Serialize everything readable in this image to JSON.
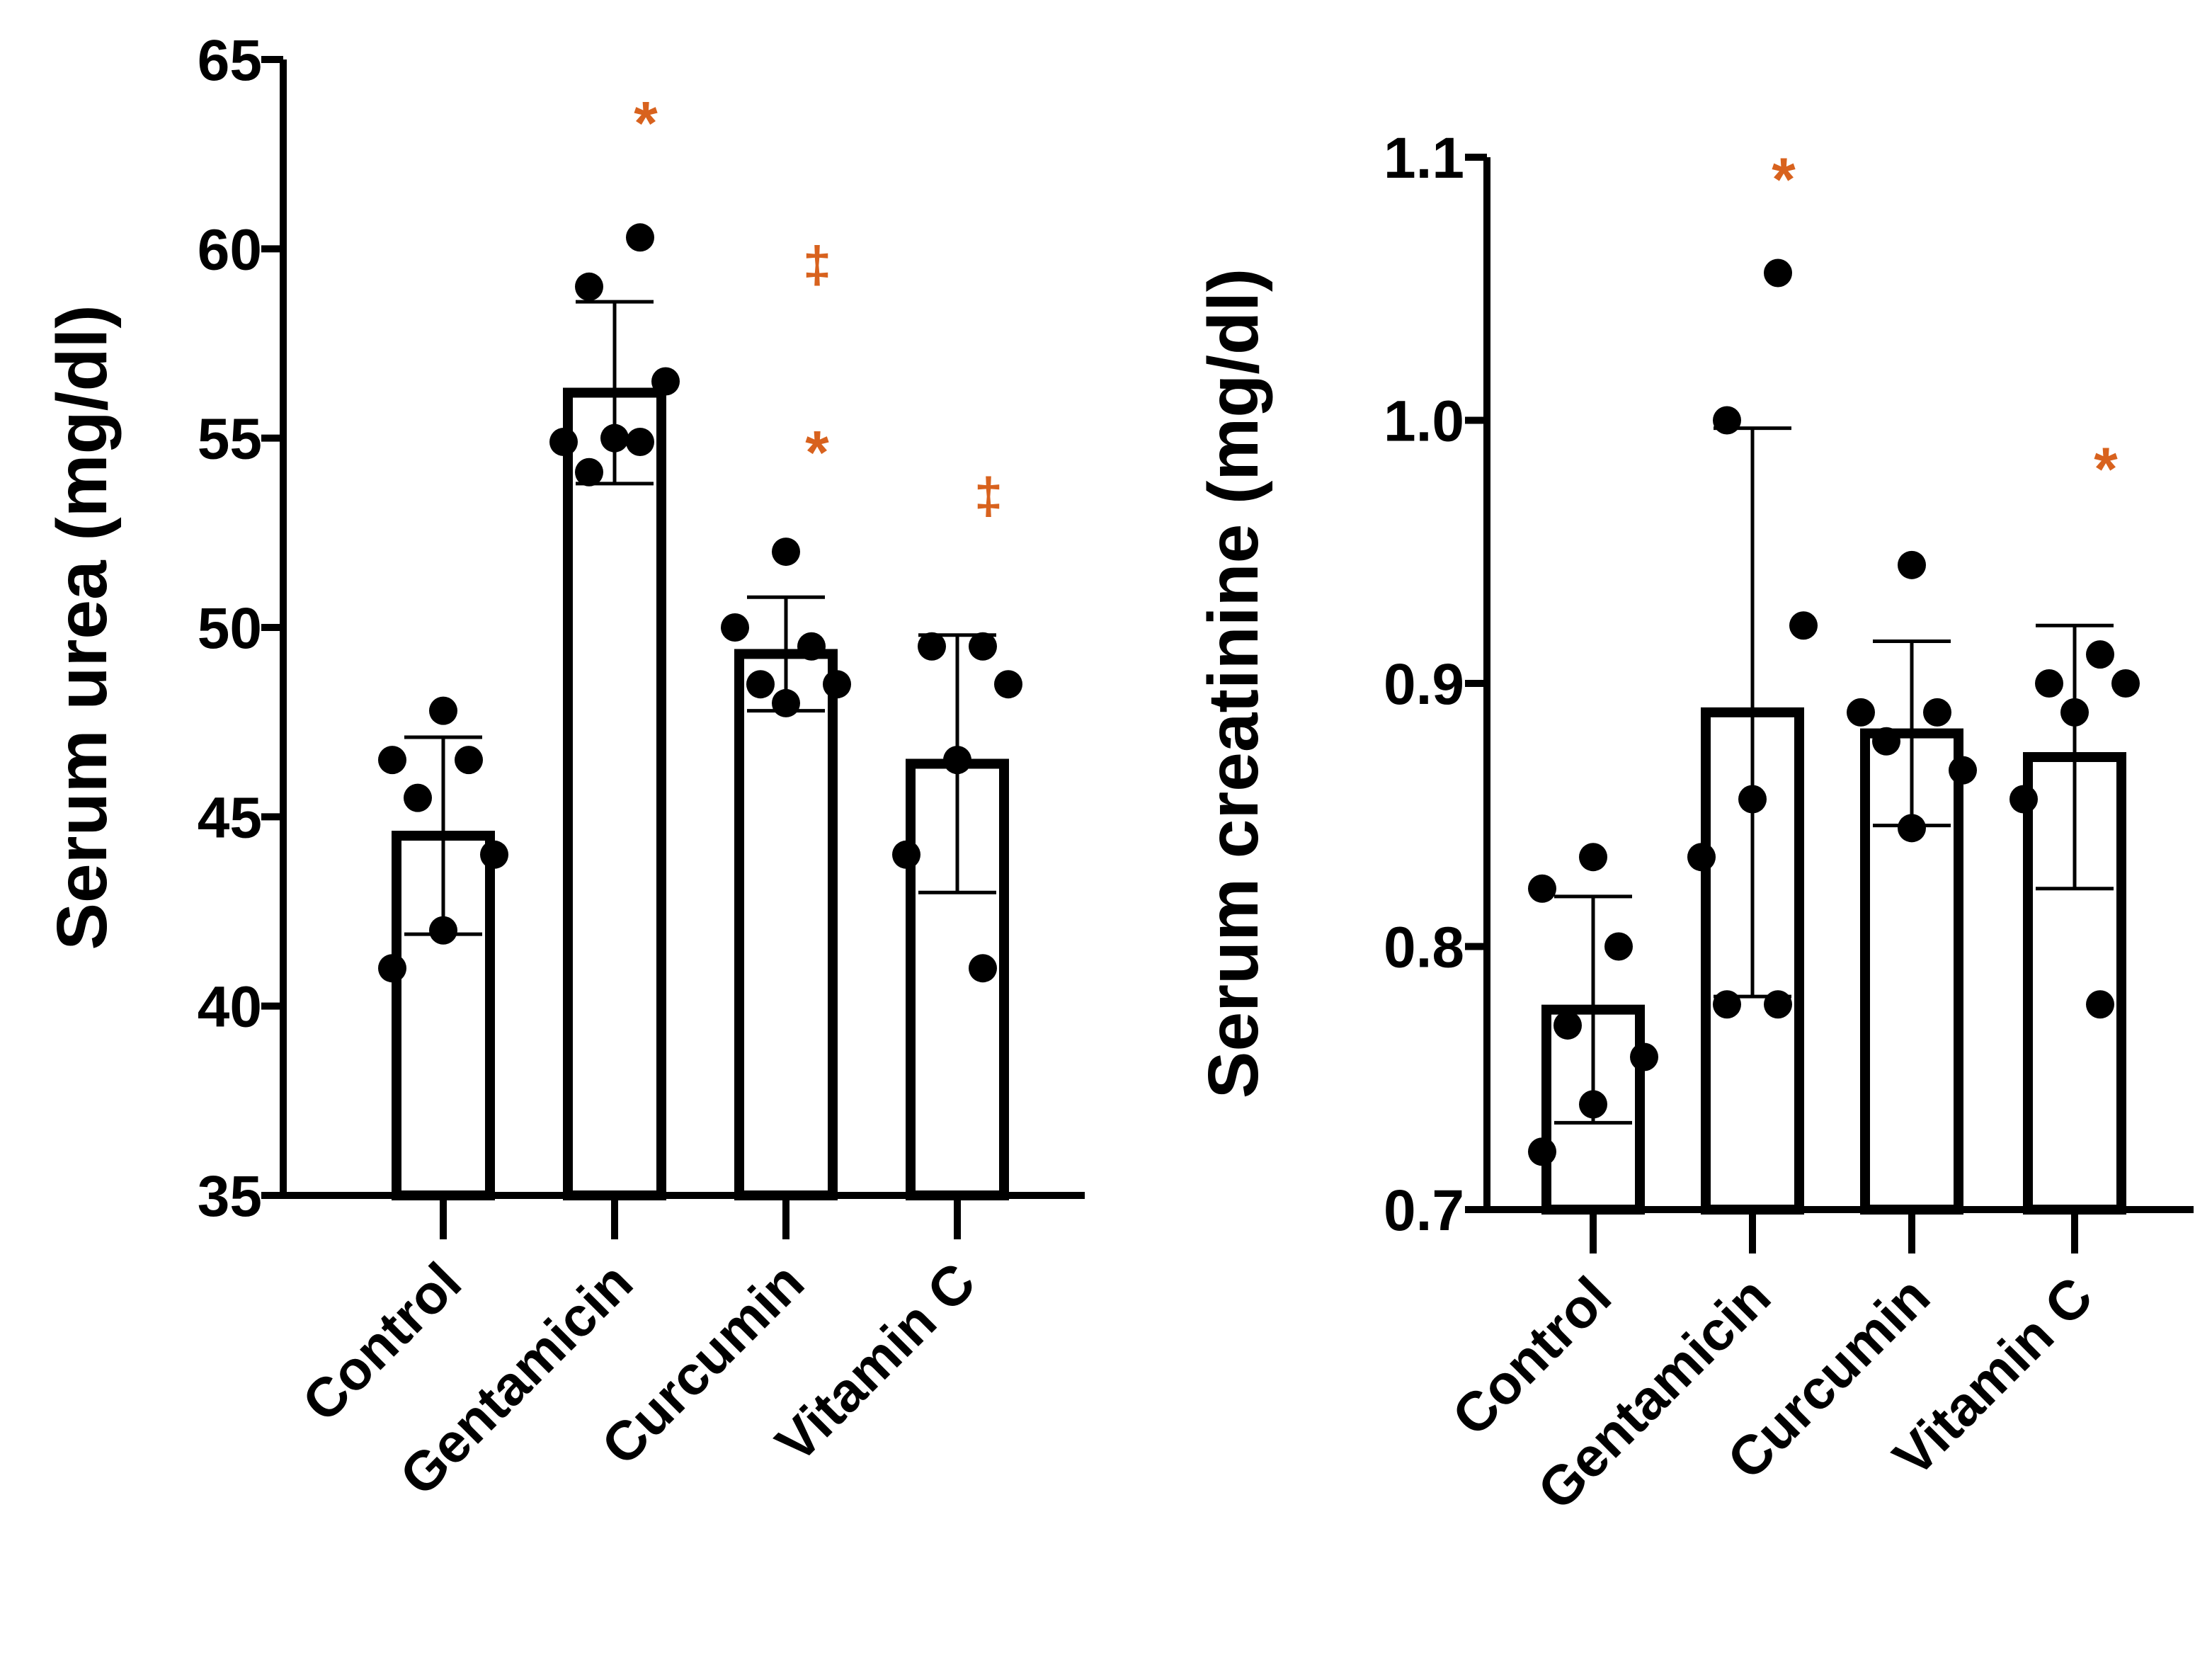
{
  "colors": {
    "ink": "#000000",
    "significance": "#d8621e",
    "bar_fill": "#ffffff"
  },
  "chart_data": [
    {
      "type": "bar",
      "title": "",
      "xlabel": "",
      "ylabel": "Serum urea (mg/dl)",
      "ylim": [
        35,
        65
      ],
      "yticks": [
        35,
        40,
        45,
        50,
        55,
        60,
        65
      ],
      "ytick_labels": [
        "35",
        "40",
        "45",
        "50",
        "55",
        "60",
        "65"
      ],
      "categories": [
        "Control",
        "Gentamicin",
        "Curcumin",
        "Vitamin C"
      ],
      "values": [
        44.5,
        56.2,
        49.3,
        46.4
      ],
      "errors": [
        2.6,
        2.4,
        1.5,
        3.4
      ],
      "points": [
        [
          41.0,
          42.0,
          44.0,
          45.5,
          46.5,
          46.5,
          47.8
        ],
        [
          54.1,
          54.9,
          54.9,
          55.0,
          56.5,
          59.0,
          60.3
        ],
        [
          48.0,
          48.5,
          48.5,
          49.5,
          50.0,
          52.0
        ],
        [
          41.0,
          44.0,
          46.5,
          48.5,
          49.5,
          49.5
        ]
      ],
      "annotations": [
        {
          "category": "Gentamicin",
          "text": "*",
          "y": 63.7
        },
        {
          "category": "Curcumin",
          "text": "‡",
          "y": 59.6
        },
        {
          "category": "Curcumin",
          "text": "*",
          "y": 55.0
        },
        {
          "category": "Vitamin C",
          "text": "‡",
          "y": 53.5
        }
      ]
    },
    {
      "type": "bar",
      "title": "",
      "xlabel": "",
      "ylabel": "Serum creatinine (mg/dl)",
      "ylim": [
        0.7,
        1.1
      ],
      "yticks": [
        0.7,
        0.8,
        0.9,
        1.0,
        1.1
      ],
      "ytick_labels": [
        "0.7",
        "0.8",
        "0.9",
        "1.0",
        "1.1"
      ],
      "categories": [
        "Control",
        "Gentamicin",
        "Curcumin",
        "Vitamin C"
      ],
      "values": [
        0.776,
        0.889,
        0.881,
        0.872
      ],
      "errors": [
        0.043,
        0.108,
        0.035,
        0.05
      ],
      "points": [
        [
          0.722,
          0.74,
          0.758,
          0.77,
          0.8,
          0.822,
          0.834
        ],
        [
          0.778,
          0.778,
          0.834,
          0.856,
          0.922,
          1.0,
          1.056
        ],
        [
          0.845,
          0.867,
          0.878,
          0.889,
          0.889,
          0.945
        ],
        [
          0.778,
          0.856,
          0.889,
          0.9,
          0.9,
          0.911
        ]
      ],
      "annotations": [
        {
          "category": "Gentamicin",
          "text": "*",
          "y": 1.097
        },
        {
          "category": "Vitamin C",
          "text": "*",
          "y": 0.987
        }
      ]
    }
  ]
}
